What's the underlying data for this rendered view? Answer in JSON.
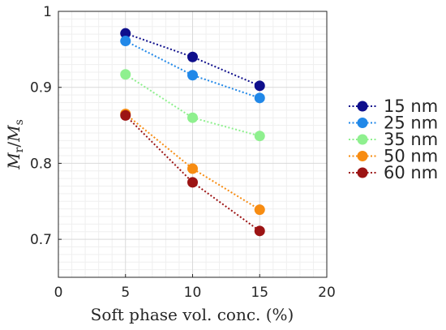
{
  "chart_data": {
    "type": "line",
    "xlabel": "Soft phase vol. conc. (%)",
    "ylabel": {
      "main": "M",
      "sub1": "r",
      "slash": "/",
      "main2": "M",
      "sub2": "s"
    },
    "xlim": [
      0,
      20
    ],
    "ylim": [
      0.65,
      1.0
    ],
    "xticks": [
      0,
      5,
      10,
      15,
      20
    ],
    "yticks": [
      0.7,
      0.8,
      0.9,
      1.0
    ],
    "xtick_labels": [
      "0",
      "5",
      "10",
      "15",
      "20"
    ],
    "ytick_labels": [
      "0.7",
      "0.8",
      "0.9",
      "1"
    ],
    "grid": true,
    "minor_grid": true,
    "legend_position": "right",
    "x": [
      5,
      10,
      15
    ],
    "series": [
      {
        "name": "15 nm",
        "color": "#0f0f8c",
        "values": [
          0.971,
          0.94,
          0.902
        ]
      },
      {
        "name": "25 nm",
        "color": "#2188e8",
        "values": [
          0.961,
          0.916,
          0.886
        ]
      },
      {
        "name": "35 nm",
        "color": "#8ff08f",
        "values": [
          0.917,
          0.86,
          0.836
        ]
      },
      {
        "name": "50 nm",
        "color": "#f78c12",
        "values": [
          0.865,
          0.793,
          0.739
        ]
      },
      {
        "name": "60 nm",
        "color": "#9c1414",
        "values": [
          0.863,
          0.775,
          0.711
        ]
      }
    ]
  }
}
